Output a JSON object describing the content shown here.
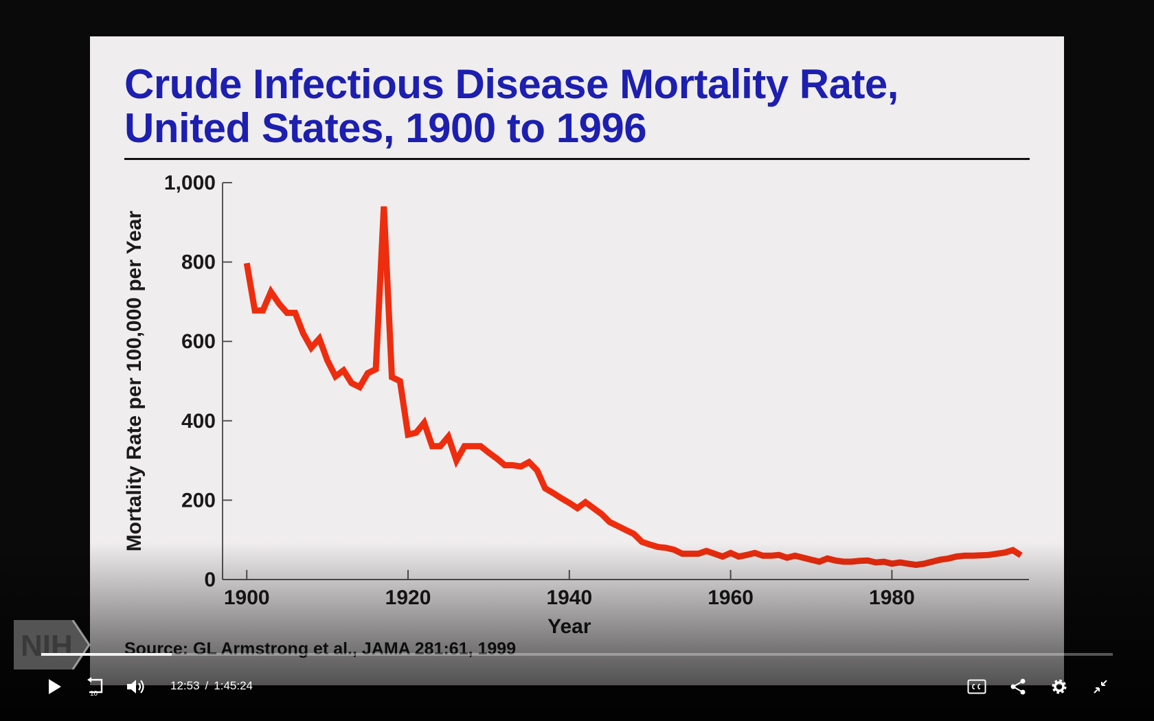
{
  "slide": {
    "title_line1": "Crude Infectious Disease Mortality Rate,",
    "title_line2": "United States, 1900 to 1996",
    "source": "Source: GL Armstrong et al., JAMA 281:61, 1999"
  },
  "chart_data": {
    "type": "line",
    "xlabel": "Year",
    "ylabel": "Mortality Rate per 100,000 per Year",
    "xlim": [
      1897,
      1997
    ],
    "ylim": [
      0,
      1000
    ],
    "x_ticks": [
      1900,
      1920,
      1940,
      1960,
      1980
    ],
    "x_tick_labels": [
      "1900",
      "1920",
      "1940",
      "1960",
      "1980"
    ],
    "y_ticks": [
      0,
      200,
      400,
      600,
      800,
      1000
    ],
    "y_tick_labels": [
      "0",
      "200",
      "400",
      "600",
      "800",
      "1,000"
    ],
    "line_color": "#ee2d0e",
    "series": [
      {
        "x": [
          1900,
          1901,
          1902,
          1903,
          1904,
          1905,
          1906,
          1907,
          1908,
          1909,
          1910,
          1911,
          1912,
          1913,
          1914,
          1915,
          1916,
          1917,
          1918,
          1919,
          1920,
          1921,
          1922,
          1923,
          1924,
          1925,
          1926,
          1927,
          1928,
          1929,
          1930,
          1931,
          1932,
          1933,
          1934,
          1935,
          1936,
          1937,
          1938,
          1939,
          1940,
          1941,
          1942,
          1943,
          1944,
          1945,
          1946,
          1947,
          1948,
          1949,
          1950,
          1951,
          1952,
          1953,
          1954,
          1955,
          1956,
          1957,
          1958,
          1959,
          1960,
          1961,
          1962,
          1963,
          1964,
          1965,
          1966,
          1967,
          1968,
          1969,
          1970,
          1971,
          1972,
          1973,
          1974,
          1975,
          1976,
          1977,
          1978,
          1979,
          1980,
          1981,
          1982,
          1983,
          1984,
          1985,
          1986,
          1987,
          1988,
          1989,
          1990,
          1991,
          1992,
          1993,
          1994,
          1995,
          1996
        ],
        "y": [
          797,
          678,
          678,
          725,
          695,
          672,
          672,
          620,
          584,
          607,
          552,
          512,
          527,
          495,
          485,
          520,
          530,
          940,
          510,
          500,
          365,
          370,
          395,
          336,
          336,
          360,
          300,
          336,
          336,
          336,
          320,
          305,
          288,
          288,
          285,
          296,
          275,
          230,
          218,
          205,
          193,
          180,
          195,
          180,
          165,
          145,
          135,
          125,
          115,
          95,
          88,
          82,
          80,
          75,
          65,
          65,
          65,
          72,
          65,
          58,
          67,
          58,
          62,
          67,
          60,
          60,
          62,
          55,
          60,
          55,
          50,
          45,
          53,
          48,
          45,
          45,
          47,
          48,
          43,
          45,
          40,
          43,
          40,
          37,
          40,
          45,
          50,
          53,
          58,
          60,
          60,
          61,
          62,
          65,
          68,
          74,
          61
        ]
      }
    ]
  },
  "player": {
    "current_time": "12:53",
    "separator": "/",
    "duration": "1:45:24",
    "progress": 0.122,
    "skip_seconds": "10",
    "logo_text": "NIH"
  }
}
